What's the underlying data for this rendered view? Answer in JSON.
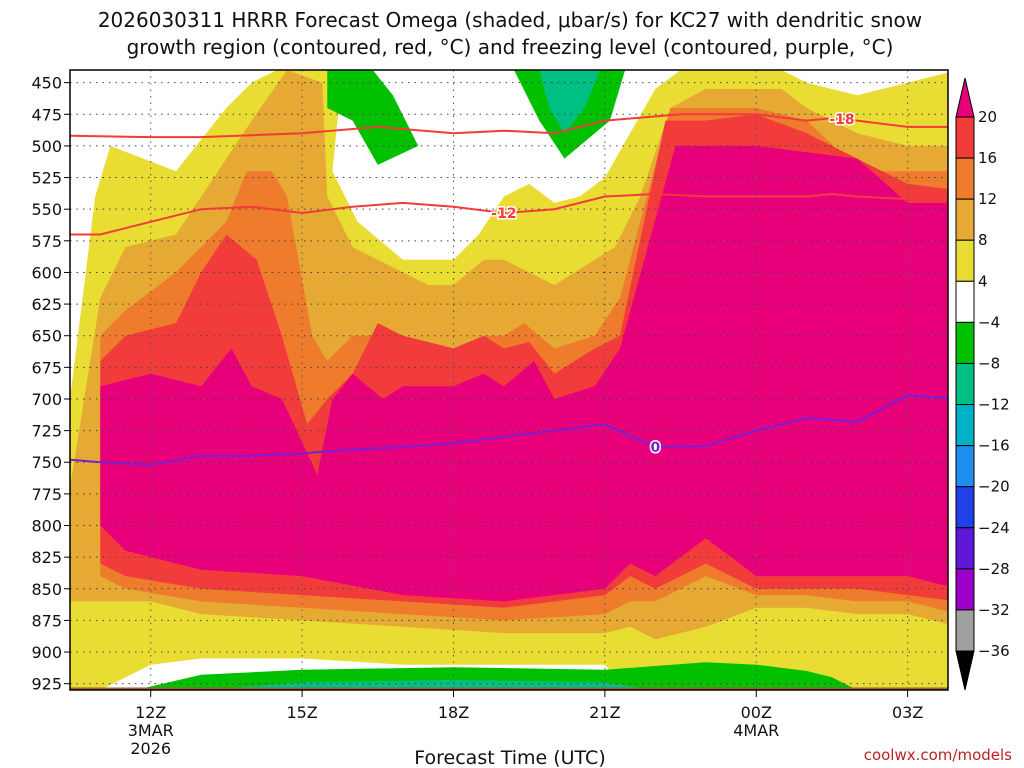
{
  "chart_data": {
    "type": "heatmap",
    "title_line1": "2026030311 HRRR Forecast Omega (shaded, μbar/s) for KC27 with dendritic snow",
    "title_line2": "growth region (contoured, red, °C) and freezing level (contoured, purple, °C)",
    "xlabel": "Forecast Time (UTC)",
    "credit": "coolwx.com/models",
    "y_axis": {
      "range": [
        440,
        930
      ],
      "ticks": [
        450,
        475,
        500,
        525,
        550,
        575,
        600,
        625,
        650,
        675,
        700,
        725,
        750,
        775,
        800,
        825,
        850,
        875,
        900,
        925
      ]
    },
    "x_axis": {
      "range_hours_from_12z": [
        -1.6,
        15.8
      ],
      "ticks": [
        {
          "label": "12Z",
          "hour": 0,
          "sub1": "3MAR",
          "sub2": "2026"
        },
        {
          "label": "15Z",
          "hour": 3,
          "sub1": "",
          "sub2": ""
        },
        {
          "label": "18Z",
          "hour": 6,
          "sub1": "",
          "sub2": ""
        },
        {
          "label": "21Z",
          "hour": 9,
          "sub1": "",
          "sub2": ""
        },
        {
          "label": "00Z",
          "hour": 12,
          "sub1": "4MAR",
          "sub2": ""
        },
        {
          "label": "03Z",
          "hour": 15,
          "sub1": "",
          "sub2": ""
        }
      ]
    },
    "colorbar": {
      "labels": [
        "20",
        "16",
        "12",
        "8",
        "4",
        "−4",
        "−8",
        "−12",
        "−16",
        "−20",
        "−24",
        "−28",
        "−32",
        "−36"
      ],
      "colors": [
        "#e8007a",
        "#f23b3b",
        "#ef7b2d",
        "#e6a933",
        "#e9dc33",
        "#ffffff",
        "#00c000",
        "#00bf82",
        "#00b2c8",
        "#1e8ff0",
        "#2040e8",
        "#6018d8",
        "#9a00c8",
        "#a0a0a0",
        "#000000"
      ]
    },
    "omega_bands": [
      {
        "level": 4,
        "color": "#e9dc33",
        "top": [
          [
            -1.6,
            700
          ],
          [
            -1.1,
            540
          ],
          [
            -0.8,
            500
          ],
          [
            0.5,
            520
          ],
          [
            1.5,
            470
          ],
          [
            2,
            450
          ],
          [
            2.5,
            440
          ],
          [
            3.8,
            440
          ],
          [
            3.6,
            520
          ],
          [
            4.1,
            560
          ],
          [
            5,
            590
          ],
          [
            6,
            590
          ],
          [
            6.5,
            570
          ],
          [
            7,
            540
          ],
          [
            7.5,
            530
          ],
          [
            8,
            545
          ],
          [
            8.5,
            540
          ],
          [
            9,
            525
          ],
          [
            10,
            455
          ],
          [
            10.5,
            440
          ],
          [
            12.5,
            440
          ],
          [
            13,
            450
          ],
          [
            14,
            460
          ],
          [
            15,
            450
          ],
          [
            16,
            440
          ]
        ],
        "bottom": [
          [
            16,
            930
          ],
          [
            15,
            930
          ],
          [
            14,
            930
          ],
          [
            13,
            920
          ],
          [
            12,
            920
          ],
          [
            11,
            930
          ],
          [
            10,
            930
          ],
          [
            9.5,
            935
          ],
          [
            9,
            910
          ],
          [
            7,
            910
          ],
          [
            5,
            910
          ],
          [
            3,
            905
          ],
          [
            1,
            905
          ],
          [
            0,
            910
          ],
          [
            -1,
            930
          ],
          [
            -1.6,
            930
          ]
        ]
      },
      {
        "level": 8,
        "color": "#e6a933",
        "top": [
          [
            -1.6,
            770
          ],
          [
            -1,
            620
          ],
          [
            -0.5,
            580
          ],
          [
            0.5,
            570
          ],
          [
            1.5,
            510
          ],
          [
            2,
            480
          ],
          [
            2.7,
            440
          ],
          [
            3.4,
            450
          ],
          [
            3.5,
            540
          ],
          [
            4,
            580
          ],
          [
            5,
            600
          ],
          [
            5.5,
            610
          ],
          [
            6,
            610
          ],
          [
            6.6,
            590
          ],
          [
            7,
            590
          ],
          [
            8,
            610
          ],
          [
            8.8,
            590
          ],
          [
            9.2,
            580
          ],
          [
            9.7,
            540
          ],
          [
            10.3,
            470
          ],
          [
            11,
            455
          ],
          [
            12.5,
            455
          ],
          [
            13,
            470
          ],
          [
            14,
            490
          ],
          [
            15,
            500
          ],
          [
            16,
            500
          ]
        ],
        "bottom": [
          [
            16,
            880
          ],
          [
            15,
            870
          ],
          [
            14,
            870
          ],
          [
            13,
            865
          ],
          [
            12,
            865
          ],
          [
            11,
            880
          ],
          [
            10,
            890
          ],
          [
            9.5,
            880
          ],
          [
            9,
            885
          ],
          [
            7,
            885
          ],
          [
            5,
            880
          ],
          [
            3,
            875
          ],
          [
            1,
            870
          ],
          [
            0,
            860
          ],
          [
            -1,
            860
          ],
          [
            -1.6,
            860
          ]
        ]
      },
      {
        "level": 12,
        "color": "#ef7b2d",
        "top": [
          [
            -1,
            650
          ],
          [
            -0.5,
            630
          ],
          [
            0.5,
            600
          ],
          [
            1.5,
            560
          ],
          [
            1.9,
            520
          ],
          [
            2.4,
            520
          ],
          [
            2.7,
            540
          ],
          [
            3.2,
            650
          ],
          [
            3.5,
            670
          ],
          [
            4,
            650
          ],
          [
            4.7,
            650
          ],
          [
            5.5,
            670
          ],
          [
            6,
            670
          ],
          [
            6.6,
            650
          ],
          [
            7,
            650
          ],
          [
            7.4,
            640
          ],
          [
            8,
            660
          ],
          [
            8.8,
            650
          ],
          [
            9.3,
            620
          ],
          [
            10.3,
            470
          ],
          [
            11,
            470
          ],
          [
            12,
            470
          ],
          [
            13,
            480
          ],
          [
            13.8,
            510
          ],
          [
            14.5,
            520
          ],
          [
            16,
            520
          ]
        ],
        "bottom": [
          [
            16,
            870
          ],
          [
            15,
            860
          ],
          [
            14,
            860
          ],
          [
            13,
            855
          ],
          [
            12,
            855
          ],
          [
            11,
            840
          ],
          [
            10,
            860
          ],
          [
            9.5,
            860
          ],
          [
            9,
            870
          ],
          [
            7,
            875
          ],
          [
            5,
            870
          ],
          [
            3,
            865
          ],
          [
            1,
            860
          ],
          [
            -0.5,
            850
          ],
          [
            -1,
            840
          ]
        ]
      },
      {
        "level": 16,
        "color": "#f23b3b",
        "top": [
          [
            -1,
            670
          ],
          [
            -0.5,
            650
          ],
          [
            0.5,
            640
          ],
          [
            1,
            600
          ],
          [
            1.5,
            570
          ],
          [
            2.1,
            590
          ],
          [
            2.6,
            650
          ],
          [
            3.1,
            720
          ],
          [
            3.5,
            700
          ],
          [
            4,
            680
          ],
          [
            4.5,
            640
          ],
          [
            5,
            650
          ],
          [
            6,
            660
          ],
          [
            6.6,
            650
          ],
          [
            7,
            660
          ],
          [
            7.5,
            655
          ],
          [
            8,
            680
          ],
          [
            8.8,
            660
          ],
          [
            9.3,
            650
          ],
          [
            10.2,
            480
          ],
          [
            11,
            480
          ],
          [
            12,
            475
          ],
          [
            13,
            490
          ],
          [
            14,
            510
          ],
          [
            15,
            530
          ],
          [
            16,
            535
          ]
        ],
        "bottom": [
          [
            16,
            860
          ],
          [
            15,
            855
          ],
          [
            14,
            850
          ],
          [
            13,
            850
          ],
          [
            12,
            850
          ],
          [
            11,
            830
          ],
          [
            10,
            850
          ],
          [
            9.5,
            840
          ],
          [
            9,
            855
          ],
          [
            7,
            865
          ],
          [
            5,
            860
          ],
          [
            3,
            855
          ],
          [
            1,
            850
          ],
          [
            -0.5,
            840
          ],
          [
            -1,
            830
          ]
        ]
      },
      {
        "level": 20,
        "color": "#e8007a",
        "top": [
          [
            -1,
            690
          ],
          [
            0,
            680
          ],
          [
            1,
            690
          ],
          [
            1.6,
            660
          ],
          [
            2,
            690
          ],
          [
            2.6,
            700
          ],
          [
            3.3,
            760
          ],
          [
            3.6,
            700
          ],
          [
            4,
            680
          ],
          [
            4.6,
            700
          ],
          [
            5,
            690
          ],
          [
            6,
            690
          ],
          [
            6.6,
            680
          ],
          [
            7,
            690
          ],
          [
            7.6,
            670
          ],
          [
            8,
            700
          ],
          [
            8.8,
            690
          ],
          [
            9.3,
            660
          ],
          [
            10.4,
            500
          ],
          [
            12,
            500
          ],
          [
            13,
            505
          ],
          [
            14,
            510
          ],
          [
            15,
            545
          ],
          [
            16,
            545
          ]
        ],
        "bottom": [
          [
            16,
            850
          ],
          [
            15,
            840
          ],
          [
            14,
            840
          ],
          [
            13,
            840
          ],
          [
            12,
            840
          ],
          [
            11,
            810
          ],
          [
            10,
            840
          ],
          [
            9.5,
            830
          ],
          [
            9,
            850
          ],
          [
            7,
            860
          ],
          [
            5,
            855
          ],
          [
            3,
            840
          ],
          [
            1,
            835
          ],
          [
            -0.5,
            820
          ],
          [
            -1,
            800
          ]
        ]
      }
    ],
    "green_regions": [
      {
        "label": "-4",
        "color": "#00c000",
        "points": [
          [
            3.5,
            440
          ],
          [
            4.4,
            440
          ],
          [
            4.8,
            460
          ],
          [
            5.3,
            500
          ],
          [
            4.5,
            515
          ],
          [
            4,
            480
          ],
          [
            3.5,
            470
          ]
        ]
      },
      {
        "label": "-4",
        "color": "#00c000",
        "points": [
          [
            7.2,
            440
          ],
          [
            9.4,
            440
          ],
          [
            9.1,
            480
          ],
          [
            8.2,
            510
          ],
          [
            7.7,
            480
          ]
        ]
      },
      {
        "label": "-8",
        "color": "#00bf82",
        "points": [
          [
            7.7,
            440
          ],
          [
            8.9,
            440
          ],
          [
            8.6,
            470
          ],
          [
            8.2,
            490
          ],
          [
            7.9,
            470
          ]
        ]
      },
      {
        "label": "-4",
        "color": "#00c000",
        "points": [
          [
            -0.3,
            930
          ],
          [
            1,
            918
          ],
          [
            3,
            914
          ],
          [
            6,
            912
          ],
          [
            9,
            914
          ],
          [
            11,
            908
          ],
          [
            12,
            910
          ],
          [
            13,
            915
          ],
          [
            13.5,
            920
          ],
          [
            14,
            930
          ]
        ]
      },
      {
        "label": "-8",
        "color": "#00bf82",
        "points": [
          [
            1,
            930
          ],
          [
            3,
            924
          ],
          [
            6,
            922
          ],
          [
            9,
            924
          ],
          [
            10,
            930
          ]
        ]
      }
    ],
    "contour_minus18": {
      "label": "-18",
      "color": "#f23b3b",
      "points": [
        [
          -1.6,
          492
        ],
        [
          0,
          493
        ],
        [
          1,
          493
        ],
        [
          3,
          490
        ],
        [
          4.5,
          485
        ],
        [
          6,
          490
        ],
        [
          7,
          488
        ],
        [
          8,
          490
        ],
        [
          9,
          480
        ],
        [
          10.5,
          475
        ],
        [
          12,
          475
        ],
        [
          13,
          480
        ],
        [
          13.5,
          478
        ],
        [
          14,
          480
        ],
        [
          15,
          485
        ],
        [
          16,
          485
        ]
      ]
    },
    "contour_minus12": {
      "label": "-12",
      "color": "#f23b3b",
      "points": [
        [
          -1.6,
          570
        ],
        [
          -1,
          570
        ],
        [
          0,
          560
        ],
        [
          1,
          550
        ],
        [
          2,
          548
        ],
        [
          3,
          553
        ],
        [
          4,
          548
        ],
        [
          5,
          545
        ],
        [
          6,
          548
        ],
        [
          7,
          553
        ],
        [
          8,
          550
        ],
        [
          9,
          540
        ],
        [
          10,
          538
        ],
        [
          11,
          540
        ],
        [
          12,
          540
        ],
        [
          13,
          540
        ],
        [
          13.5,
          538
        ],
        [
          14,
          540
        ],
        [
          15,
          542
        ],
        [
          16,
          542
        ]
      ]
    },
    "contour_zero": {
      "label": "0",
      "color": "#7a1fd6",
      "points": [
        [
          -1.6,
          748
        ],
        [
          -1,
          750
        ],
        [
          0,
          752
        ],
        [
          1,
          745
        ],
        [
          2,
          745
        ],
        [
          3,
          743
        ],
        [
          4,
          740
        ],
        [
          5,
          738
        ],
        [
          6,
          735
        ],
        [
          7,
          730
        ],
        [
          8,
          725
        ],
        [
          9,
          720
        ],
        [
          10,
          738
        ],
        [
          11,
          737
        ],
        [
          12,
          725
        ],
        [
          13,
          715
        ],
        [
          14,
          718
        ],
        [
          15,
          697
        ],
        [
          16,
          700
        ]
      ]
    },
    "ground": {
      "color": "#a06030",
      "pressure_top": 925
    }
  }
}
